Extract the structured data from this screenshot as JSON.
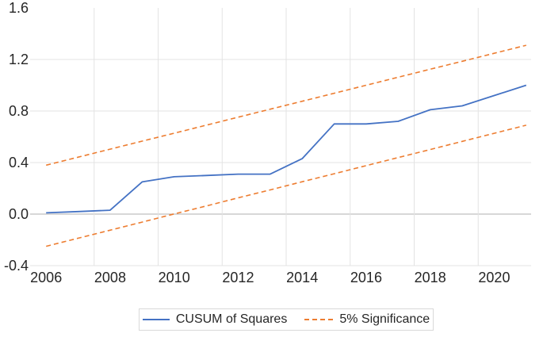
{
  "chart_data": {
    "type": "line",
    "title": "",
    "x": [
      2006,
      2007,
      2008,
      2009,
      2010,
      2011,
      2012,
      2013,
      2014,
      2015,
      2016,
      2017,
      2018,
      2019,
      2020,
      2021
    ],
    "x_axis": {
      "tick_labels": [
        "2006",
        "2008",
        "2010",
        "2012",
        "2014",
        "2016",
        "2018",
        "2020"
      ],
      "tick_years": [
        2006,
        2008,
        2010,
        2012,
        2014,
        2016,
        2018,
        2020
      ]
    },
    "y_axis": {
      "tick_labels": [
        "1.6",
        "1.2",
        "0.8",
        "0.4",
        "0.0",
        "-0.4"
      ],
      "tick_values": [
        1.6,
        1.2,
        0.8,
        0.4,
        0.0,
        -0.4
      ],
      "range": [
        -0.4,
        1.6
      ]
    },
    "grid": {
      "horizontal": true,
      "vertical": true,
      "zero_line": true
    },
    "series": [
      {
        "name": "CUSUM of Squares",
        "color": "#4472C4",
        "line_style": "solid",
        "values": [
          0.01,
          0.02,
          0.03,
          0.25,
          0.29,
          0.3,
          0.31,
          0.31,
          0.43,
          0.7,
          0.7,
          0.72,
          0.81,
          0.84,
          0.92,
          1.0
        ]
      },
      {
        "name": "5% Significance (upper band)",
        "color": "#ED7D31",
        "line_style": "dashed",
        "values": [
          0.38,
          0.442,
          0.504,
          0.566,
          0.628,
          0.69,
          0.752,
          0.814,
          0.876,
          0.938,
          1.0,
          1.062,
          1.124,
          1.186,
          1.248,
          1.31
        ]
      },
      {
        "name": "5% Significance (lower band)",
        "color": "#ED7D31",
        "line_style": "dashed",
        "values": [
          -0.25,
          -0.187,
          -0.125,
          -0.062,
          0.001,
          0.063,
          0.126,
          0.188,
          0.251,
          0.313,
          0.376,
          0.439,
          0.501,
          0.564,
          0.627,
          0.69
        ]
      }
    ],
    "legend": {
      "position": "bottom",
      "entries": [
        {
          "label": "CUSUM of Squares",
          "style": "solid",
          "color": "#4472C4"
        },
        {
          "label": "5% Significance",
          "style": "dashed",
          "color": "#ED7D31"
        }
      ]
    }
  },
  "colors": {
    "cusum_line": "#4472C4",
    "significance_line": "#ED7D31",
    "gridline": "#E3E3E3",
    "zero_line": "#BFBFBF",
    "tick_text": "#262626",
    "legend_border": "#D9D9D9",
    "background": "#FFFFFF"
  }
}
